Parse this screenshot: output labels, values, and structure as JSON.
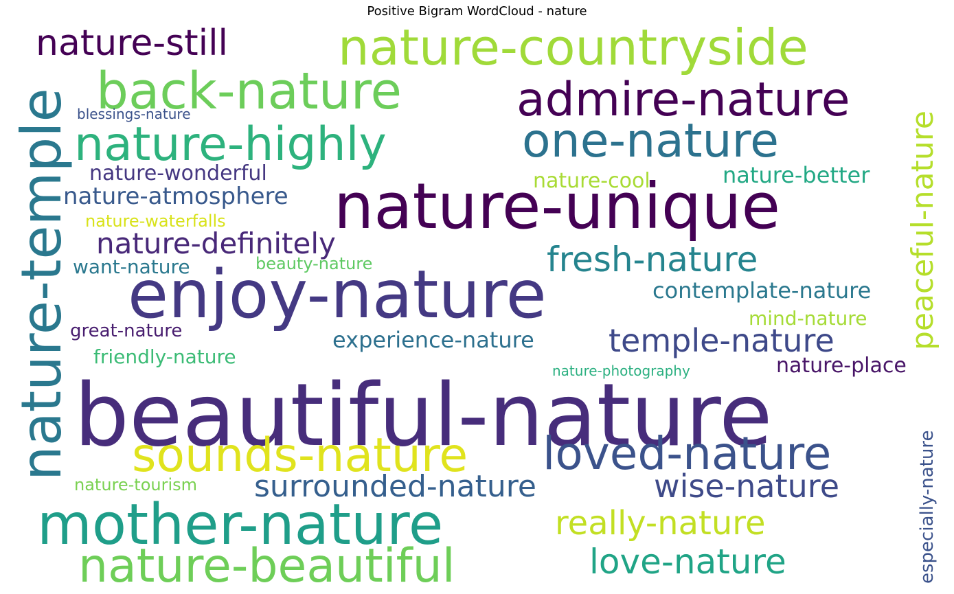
{
  "title": "Positive Bigram WordCloud - nature",
  "words": [
    {
      "text": "beautiful-nature",
      "color": "#472d7b"
    },
    {
      "text": "enjoy-nature",
      "color": "#443983"
    },
    {
      "text": "nature-unique",
      "color": "#440154"
    },
    {
      "text": "nature-temple",
      "color": "#2a788e"
    },
    {
      "text": "mother-nature",
      "color": "#1f9e89"
    },
    {
      "text": "nature-countryside",
      "color": "#a0da39"
    },
    {
      "text": "back-nature",
      "color": "#6ccd5a"
    },
    {
      "text": "admire-nature",
      "color": "#440154"
    },
    {
      "text": "nature-highly",
      "color": "#2db27d"
    },
    {
      "text": "one-nature",
      "color": "#2c728e"
    },
    {
      "text": "sounds-nature",
      "color": "#e0e31d"
    },
    {
      "text": "loved-nature",
      "color": "#3b528b"
    },
    {
      "text": "nature-beautiful",
      "color": "#6ece58"
    },
    {
      "text": "nature-still",
      "color": "#440154"
    },
    {
      "text": "peaceful-nature",
      "color": "#b5de2b"
    },
    {
      "text": "fresh-nature",
      "color": "#25848e"
    },
    {
      "text": "temple-nature",
      "color": "#3e4989"
    },
    {
      "text": "nature-definitely",
      "color": "#482878"
    },
    {
      "text": "surrounded-nature",
      "color": "#355f8d"
    },
    {
      "text": "wise-nature",
      "color": "#3e4a89"
    },
    {
      "text": "really-nature",
      "color": "#c2df23"
    },
    {
      "text": "love-nature",
      "color": "#20a486"
    },
    {
      "text": "nature-atmosphere",
      "color": "#38598c"
    },
    {
      "text": "experience-nature",
      "color": "#2d708e"
    },
    {
      "text": "contemplate-nature",
      "color": "#2a788e"
    },
    {
      "text": "nature-wonderful",
      "color": "#453781"
    },
    {
      "text": "nature-better",
      "color": "#22a884"
    },
    {
      "text": "nature-place",
      "color": "#481567"
    },
    {
      "text": "nature-cool",
      "color": "#a8db34"
    },
    {
      "text": "mind-nature",
      "color": "#a5db36"
    },
    {
      "text": "friendly-nature",
      "color": "#3bbb75"
    },
    {
      "text": "great-nature",
      "color": "#481d6f"
    },
    {
      "text": "want-nature",
      "color": "#2a788e"
    },
    {
      "text": "especially-nature",
      "color": "#3b528b"
    },
    {
      "text": "beauty-nature",
      "color": "#5ec962"
    },
    {
      "text": "nature-waterfalls",
      "color": "#d8e219"
    },
    {
      "text": "nature-tourism",
      "color": "#7ad151"
    },
    {
      "text": "blessings-nature",
      "color": "#3b528b"
    },
    {
      "text": "nature-photography",
      "color": "#29af7f"
    }
  ]
}
